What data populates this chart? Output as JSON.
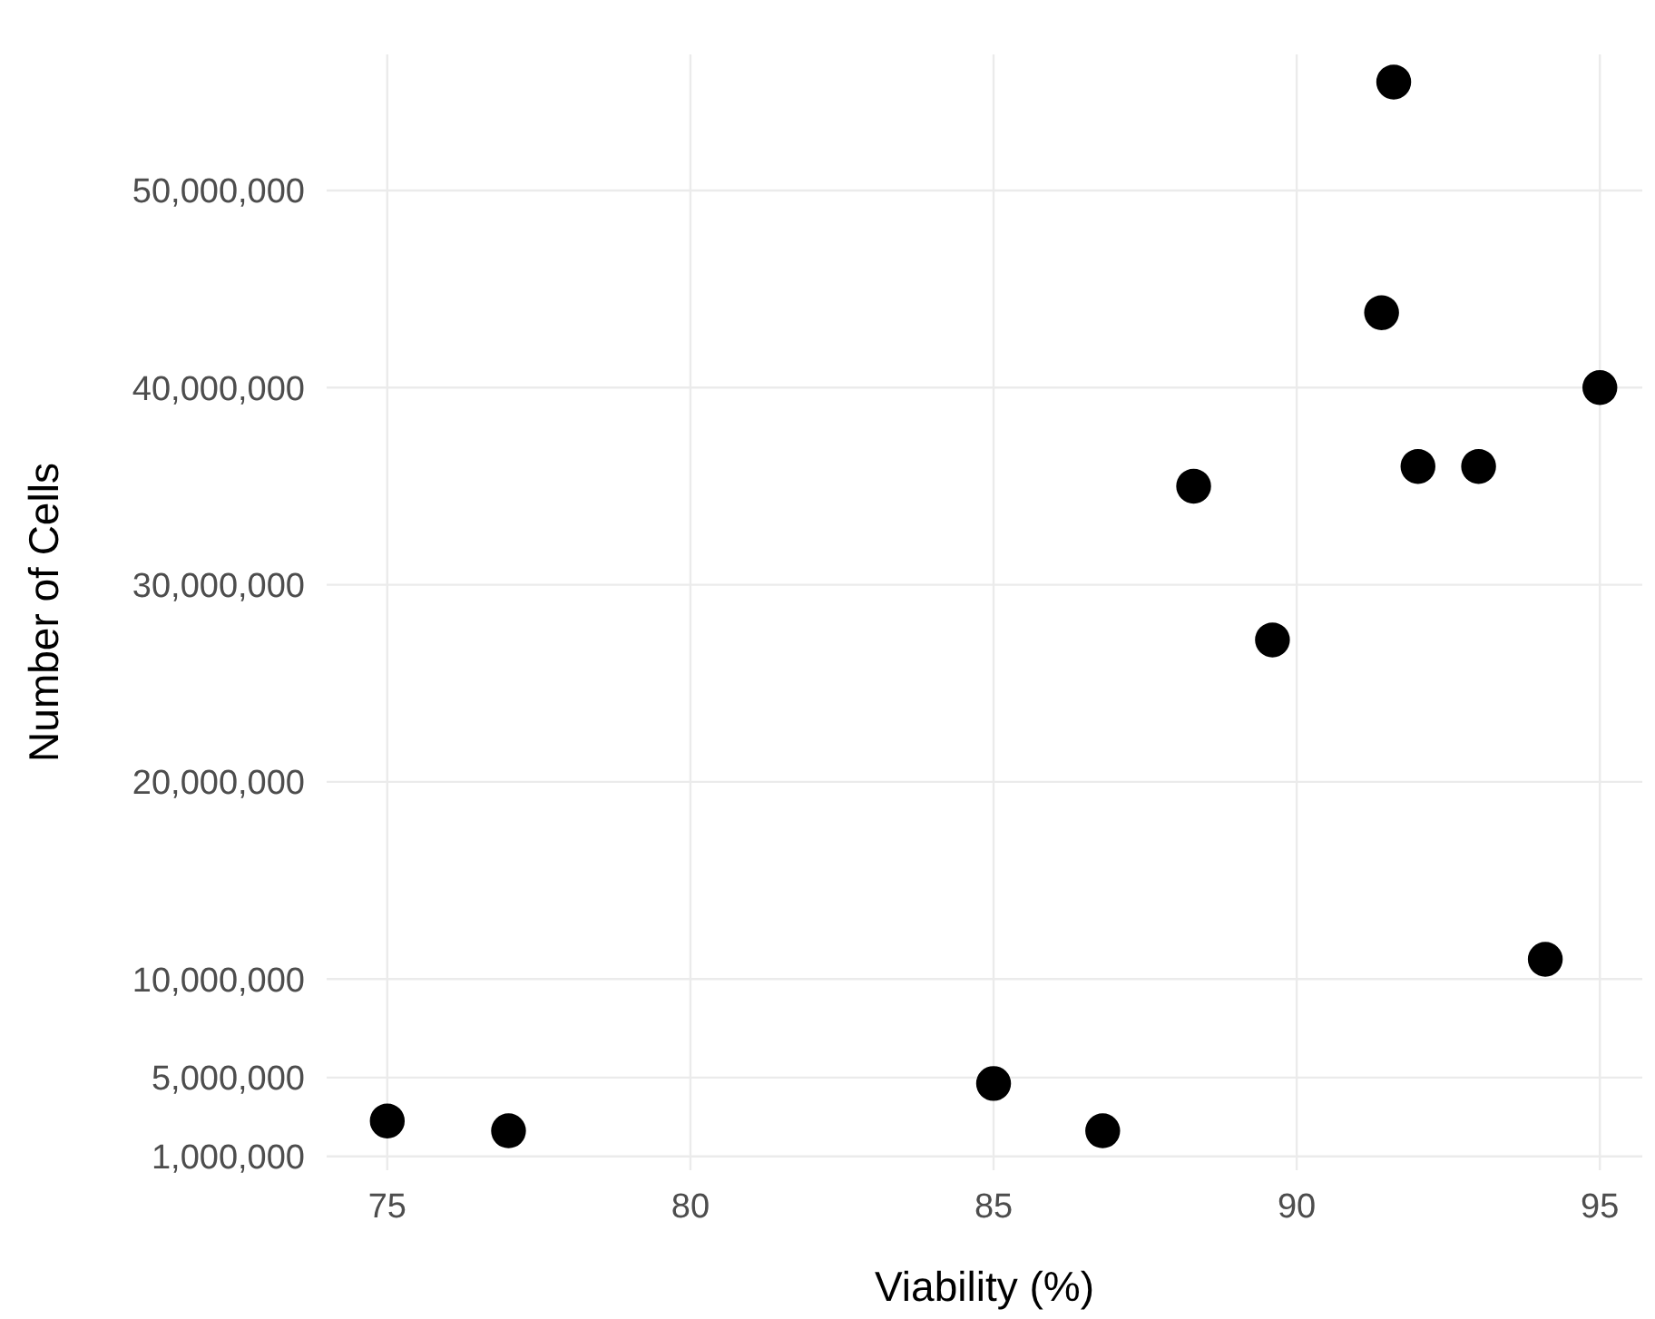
{
  "chart_data": {
    "type": "scatter",
    "xlabel": "Viability (%)",
    "ylabel": "Number of Cells",
    "x": [
      75,
      77,
      85,
      86.8,
      88.3,
      89.6,
      91.4,
      91.6,
      92.0,
      93.0,
      95.0,
      94.1
    ],
    "values": [
      2800000,
      2300000,
      4700000,
      2300000,
      35000000,
      27200000,
      43800000,
      55500000,
      36000000,
      36000000,
      40000000,
      11000000
    ],
    "color": "#000000",
    "marker": "circle",
    "xlim": [
      74,
      95.7
    ],
    "xticks": [
      75,
      80,
      85,
      90,
      95
    ],
    "ylim": [
      300000,
      56900000
    ],
    "yticks": [
      {
        "value": 1000000,
        "label": "1,000,000"
      },
      {
        "value": 5000000,
        "label": "5,000,000"
      },
      {
        "value": 10000000,
        "label": "10,000,000"
      },
      {
        "value": 20000000,
        "label": "20,000,000"
      },
      {
        "value": 30000000,
        "label": "30,000,000"
      },
      {
        "value": 40000000,
        "label": "40,000,000"
      },
      {
        "value": 50000000,
        "label": "50,000,000"
      }
    ],
    "grid": true
  }
}
